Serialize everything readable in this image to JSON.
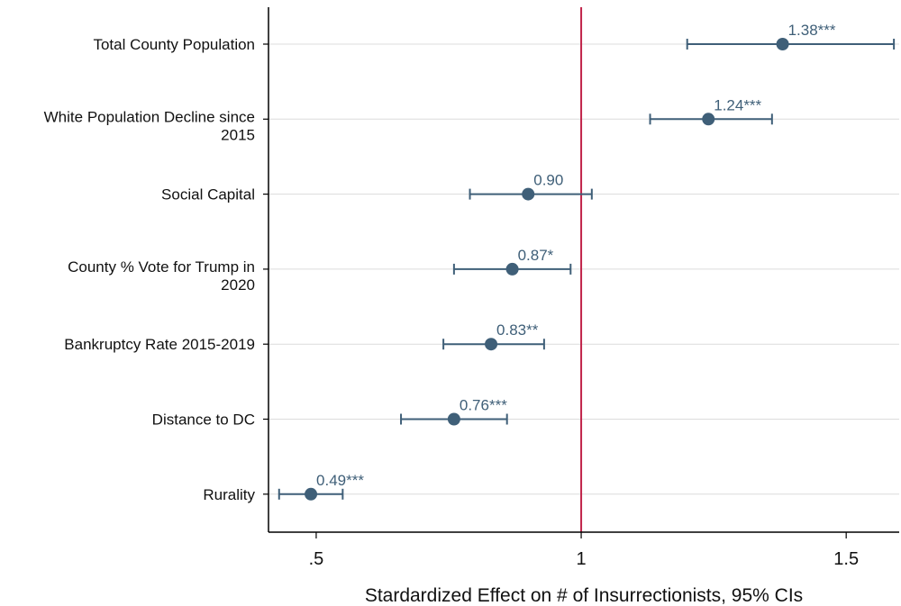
{
  "chart_data": {
    "type": "scatter",
    "subtype": "coefficient-plot-horizontal",
    "xlabel": "Stardardized Effect on # of Insurrectionists, 95% CIs",
    "xlim": [
      0.41,
      1.6
    ],
    "xticks": [
      0.5,
      1,
      1.5
    ],
    "xtick_labels": [
      ".5",
      "1",
      "1.5"
    ],
    "reference_line": 1,
    "grid": "horizontal",
    "colors": {
      "point": "#3f5f78",
      "reference_line": "#c0244a",
      "grid": "#dcdcdc",
      "axis": "#000000"
    },
    "rows": [
      {
        "label": [
          "Total County Population"
        ],
        "estimate": 1.38,
        "ci": [
          1.2,
          1.59
        ],
        "value_label": "1.38***"
      },
      {
        "label": [
          "White Population Decline since",
          "2015"
        ],
        "estimate": 1.24,
        "ci": [
          1.13,
          1.36
        ],
        "value_label": "1.24***"
      },
      {
        "label": [
          "Social Capital"
        ],
        "estimate": 0.9,
        "ci": [
          0.79,
          1.02
        ],
        "value_label": "0.90"
      },
      {
        "label": [
          "County % Vote for Trump in",
          "2020"
        ],
        "estimate": 0.87,
        "ci": [
          0.76,
          0.98
        ],
        "value_label": "0.87*"
      },
      {
        "label": [
          "Bankruptcy Rate 2015-2019"
        ],
        "estimate": 0.83,
        "ci": [
          0.74,
          0.93
        ],
        "value_label": "0.83**"
      },
      {
        "label": [
          "Distance to DC"
        ],
        "estimate": 0.76,
        "ci": [
          0.66,
          0.86
        ],
        "value_label": "0.76***"
      },
      {
        "label": [
          "Rurality"
        ],
        "estimate": 0.49,
        "ci": [
          0.43,
          0.55
        ],
        "value_label": "0.49***"
      }
    ]
  }
}
